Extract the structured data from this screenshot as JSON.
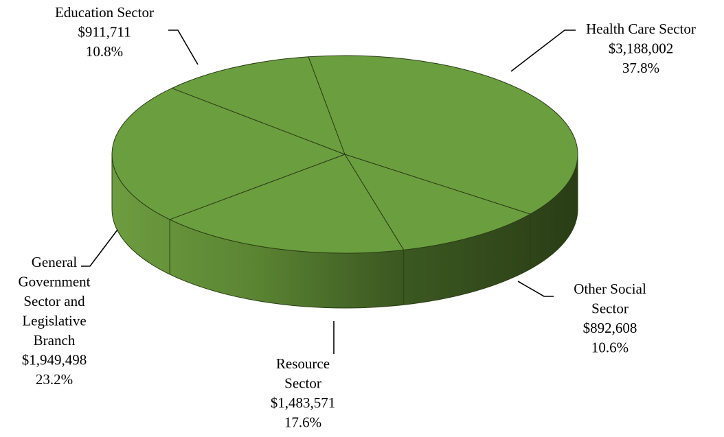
{
  "chart_data": {
    "type": "pie",
    "style": "3d",
    "title": "",
    "slices": [
      {
        "label": [
          "Health Care Sector"
        ],
        "value": 3188002,
        "value_text": "$3,188,002",
        "percent_text": "37.8%"
      },
      {
        "label": [
          "Other Social",
          "Sector"
        ],
        "value": 892608,
        "value_text": "$892,608",
        "percent_text": "10.6%"
      },
      {
        "label": [
          "Resource",
          "Sector"
        ],
        "value": 1483571,
        "value_text": "$1,483,571",
        "percent_text": "17.6%"
      },
      {
        "label": [
          "General",
          "Government",
          "Sector and",
          "Legislative",
          "Branch"
        ],
        "value": 1949498,
        "value_text": "$1,949,498",
        "percent_text": "23.2%"
      },
      {
        "label": [
          "Education Sector"
        ],
        "value": 911711,
        "value_text": "$911,711",
        "percent_text": "10.8%"
      }
    ],
    "colors": {
      "top": "#6b9e3f",
      "edge": "#2b3d16",
      "side_light": "#6e9c40",
      "side_dark": "#2c4018"
    }
  }
}
